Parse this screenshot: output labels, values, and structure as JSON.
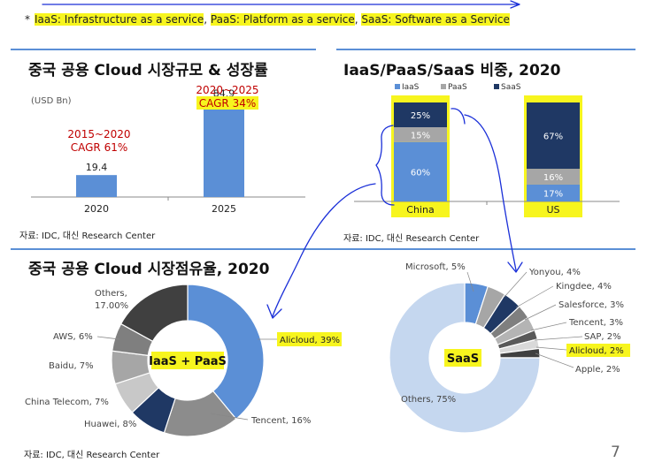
{
  "footnote": {
    "star": "*",
    "iaas": "IaaS: Infrastructure as a service",
    "paas": "PaaS: Platform as a service",
    "saas": "SaaS: Software as a Service",
    "sep": ","
  },
  "source_label": "자료: IDC, 대신 Research Center",
  "page_number": "7",
  "colors": {
    "bar_blue": "#5b8fd6",
    "navy": "#1f3864",
    "gray": "#a6a6a6",
    "dark_gray": "#404040",
    "light_blue": "#c5d7ef",
    "highlight": "#f7f51e",
    "pen": "#1a2fd8",
    "cagr_red": "#c00000"
  },
  "chart_data": [
    {
      "type": "bar",
      "title": "중국 공용 Cloud 시장규모 & 성장률",
      "ylabel": "(USD Bn)",
      "categories": [
        "2020",
        "2025"
      ],
      "values": [
        19.4,
        84.9
      ],
      "value_labels": [
        "19.4",
        "84.9"
      ],
      "annotations": [
        {
          "line1": "2015~2020",
          "line2": "CAGR 61%"
        },
        {
          "line1": "2020~2025",
          "line2": "CAGR 34%"
        }
      ],
      "ylim": [
        0,
        100
      ]
    },
    {
      "type": "bar",
      "stacked": true,
      "percent": true,
      "title": "IaaS/PaaS/SaaS 비중, 2020",
      "categories": [
        "China",
        "US"
      ],
      "series": [
        {
          "name": "IaaS",
          "values": [
            60,
            17
          ]
        },
        {
          "name": "PaaS",
          "values": [
            15,
            16
          ]
        },
        {
          "name": "SaaS",
          "values": [
            25,
            67
          ]
        }
      ],
      "value_labels": {
        "China": [
          "60%",
          "15%",
          "25%"
        ],
        "US": [
          "17%",
          "16%",
          "67%"
        ]
      },
      "legend_position": "top",
      "ylim": [
        0,
        100
      ]
    },
    {
      "type": "pie",
      "donut": true,
      "title": "중국 공용 Cloud 시장점유율, 2020",
      "center_label": "IaaS + PaaS",
      "slices": [
        {
          "label": "Alicloud, 39%",
          "value": 39
        },
        {
          "label": "Tencent, 16%",
          "value": 16
        },
        {
          "label": "Huawei, 8%",
          "value": 8
        },
        {
          "label": "China Telecom, 7%",
          "value": 7
        },
        {
          "label": "Baidu, 7%",
          "value": 7
        },
        {
          "label": "AWS, 6%",
          "value": 6
        },
        {
          "label": "Others, 17.00%",
          "value": 17
        }
      ]
    },
    {
      "type": "pie",
      "donut": true,
      "center_label": "SaaS",
      "slices": [
        {
          "label": "Microsoft, 5%",
          "value": 5
        },
        {
          "label": "Yonyou, 4%",
          "value": 4
        },
        {
          "label": "Kingdee, 4%",
          "value": 4
        },
        {
          "label": "Salesforce, 3%",
          "value": 3
        },
        {
          "label": "Tencent, 3%",
          "value": 3
        },
        {
          "label": "SAP, 2%",
          "value": 2
        },
        {
          "label": "Alicloud, 2%",
          "value": 2
        },
        {
          "label": "Apple, 2%",
          "value": 2
        },
        {
          "label": "Others, 75%",
          "value": 75
        }
      ]
    }
  ]
}
